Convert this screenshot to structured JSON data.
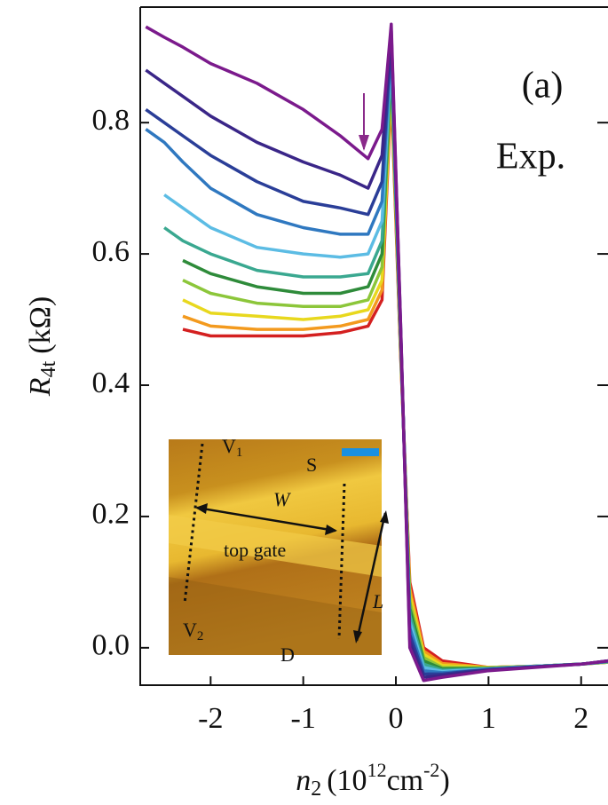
{
  "chart_data": {
    "type": "line",
    "title": "(a)",
    "annotation": "Exp.",
    "ylabel": {
      "symbol": "R",
      "sub": "4t",
      "unit": "(kΩ)"
    },
    "xlabel": {
      "symbol": "n",
      "sub": "2",
      "unit_open": "(10",
      "exp": "12",
      "unit": "cm",
      "unit_exp": "-2",
      "unit_close": ")"
    },
    "inset": {
      "v1": "V",
      "v1_sub": "1",
      "s": "S",
      "w": "W",
      "gate": "top gate",
      "l": "L",
      "v2": "V",
      "v2_sub": "2",
      "d": "D"
    },
    "x": [
      -2.7,
      -2.5,
      -2.3,
      -2.0,
      -1.5,
      -1.0,
      -0.6,
      -0.3,
      -0.15,
      -0.05,
      0.05,
      0.15,
      0.3,
      0.5,
      1.0,
      1.5,
      2.0,
      2.29
    ],
    "xlim": [
      -2.76,
      2.29
    ],
    "ylim": [
      -0.057,
      0.976
    ],
    "xticks": [
      -2,
      -1,
      0,
      1,
      2
    ],
    "yticks": [
      {
        "value": 0,
        "label": "0.0"
      },
      {
        "value": 0.2,
        "label": "0.2"
      },
      {
        "value": 0.4,
        "label": "0.4"
      },
      {
        "value": 0.6,
        "label": "0.6"
      },
      {
        "value": 0.8,
        "label": "0.8"
      }
    ],
    "series": [
      {
        "color": "#d42020",
        "values": [
          null,
          null,
          0.485,
          0.475,
          0.475,
          0.475,
          0.48,
          0.49,
          0.53,
          0.85,
          0.45,
          0.1,
          0.0,
          -0.02,
          -0.03,
          -0.028,
          -0.025,
          -0.022
        ]
      },
      {
        "color": "#f39a1e",
        "values": [
          null,
          null,
          0.505,
          0.49,
          0.485,
          0.485,
          0.49,
          0.5,
          0.545,
          0.86,
          0.46,
          0.09,
          -0.005,
          -0.024,
          -0.03,
          -0.028,
          -0.025,
          -0.022
        ]
      },
      {
        "color": "#e8d81e",
        "values": [
          null,
          null,
          0.53,
          0.51,
          0.505,
          0.5,
          0.505,
          0.515,
          0.56,
          0.87,
          0.46,
          0.08,
          -0.01,
          -0.027,
          -0.03,
          -0.028,
          -0.025,
          -0.022
        ]
      },
      {
        "color": "#8cc63a",
        "values": [
          null,
          null,
          0.56,
          0.54,
          0.525,
          0.52,
          0.52,
          0.53,
          0.58,
          0.88,
          0.47,
          0.07,
          -0.015,
          -0.03,
          -0.031,
          -0.028,
          -0.025,
          -0.022
        ]
      },
      {
        "color": "#2e8b3a",
        "values": [
          null,
          null,
          0.59,
          0.57,
          0.55,
          0.54,
          0.54,
          0.55,
          0.6,
          0.89,
          0.47,
          0.06,
          -0.02,
          -0.032,
          -0.031,
          -0.028,
          -0.025,
          -0.021
        ]
      },
      {
        "color": "#3aa890",
        "values": [
          null,
          0.64,
          0.62,
          0.6,
          0.575,
          0.565,
          0.565,
          0.57,
          0.62,
          0.9,
          0.48,
          0.05,
          -0.025,
          -0.034,
          -0.032,
          -0.028,
          -0.025,
          -0.021
        ]
      },
      {
        "color": "#5cbce4",
        "values": [
          null,
          0.69,
          0.67,
          0.64,
          0.61,
          0.6,
          0.595,
          0.6,
          0.65,
          0.91,
          0.48,
          0.04,
          -0.03,
          -0.036,
          -0.032,
          -0.028,
          -0.025,
          -0.021
        ]
      },
      {
        "color": "#2f78c0",
        "values": [
          0.79,
          0.77,
          0.74,
          0.7,
          0.66,
          0.64,
          0.63,
          0.63,
          0.68,
          0.92,
          0.49,
          0.03,
          -0.035,
          -0.038,
          -0.033,
          -0.029,
          -0.025,
          -0.021
        ]
      },
      {
        "color": "#2a3e98",
        "values": [
          0.82,
          0.8,
          0.78,
          0.75,
          0.71,
          0.68,
          0.67,
          0.66,
          0.71,
          0.93,
          0.49,
          0.02,
          -0.04,
          -0.04,
          -0.033,
          -0.029,
          -0.025,
          -0.02
        ]
      },
      {
        "color": "#3a2688",
        "values": [
          0.88,
          0.86,
          0.84,
          0.81,
          0.77,
          0.74,
          0.72,
          0.7,
          0.75,
          0.94,
          0.5,
          0.01,
          -0.045,
          -0.042,
          -0.034,
          -0.029,
          -0.025,
          -0.02
        ]
      },
      {
        "color": "#7b1a8c",
        "values": [
          0.946,
          0.93,
          0.915,
          0.89,
          0.86,
          0.82,
          0.78,
          0.745,
          0.79,
          0.95,
          0.5,
          0.0,
          -0.05,
          -0.045,
          -0.035,
          -0.03,
          -0.025,
          -0.02
        ]
      }
    ]
  }
}
